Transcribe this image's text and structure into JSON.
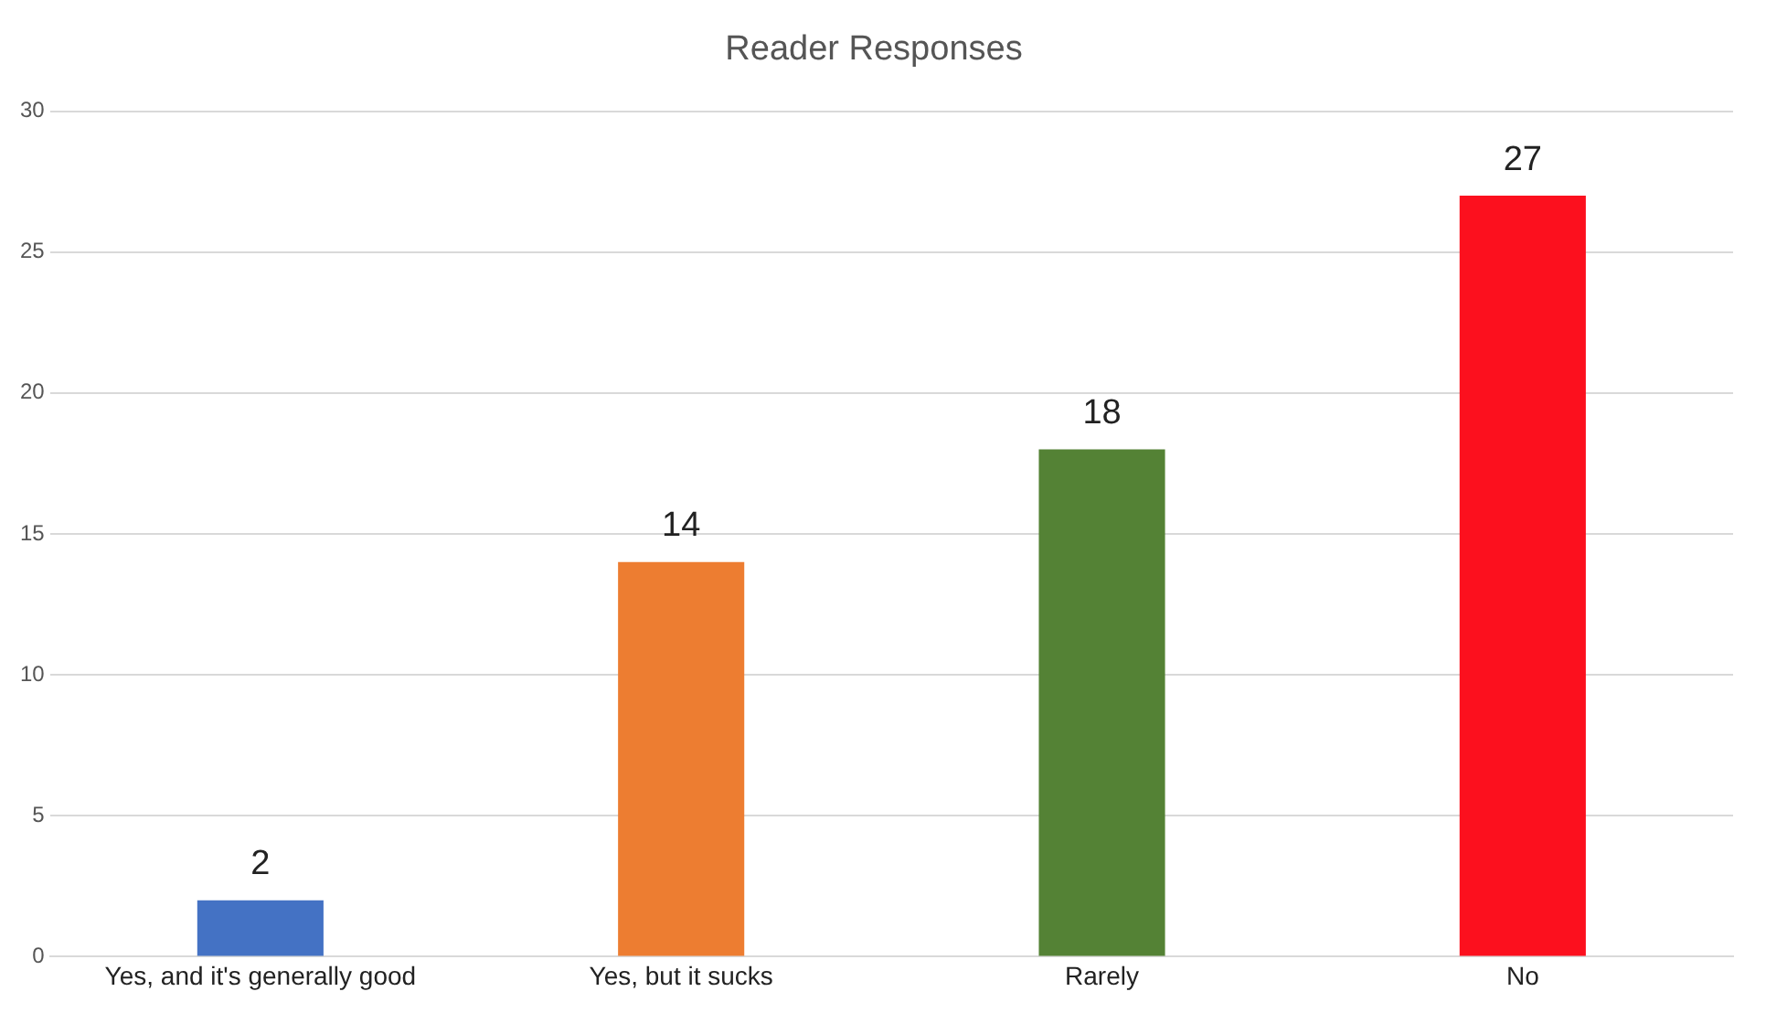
{
  "chart_data": {
    "type": "bar",
    "title": "Reader Responses",
    "categories": [
      "Yes, and it's generally good",
      "Yes, but it sucks",
      "Rarely",
      "No"
    ],
    "values": [
      2,
      14,
      18,
      27
    ],
    "colors": [
      "#4472c4",
      "#ed7d31",
      "#548235",
      "#fc101e"
    ],
    "ylim": [
      0,
      30
    ],
    "yticks": [
      0,
      5,
      10,
      15,
      20,
      25,
      30
    ],
    "grid": "y",
    "data_labels": true,
    "legend": false
  }
}
